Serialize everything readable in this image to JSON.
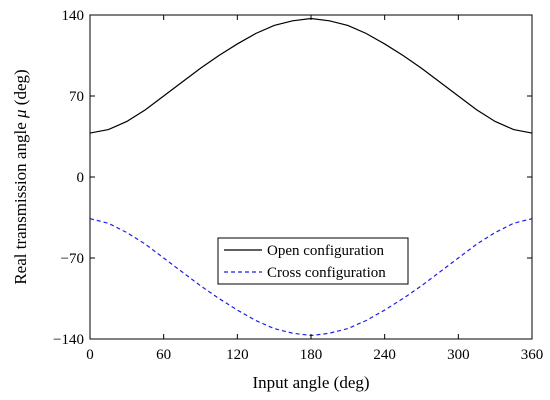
{
  "chart_data": {
    "type": "line",
    "xlabel": "Input angle (deg)",
    "ylabel_text": "Real transmission angle ",
    "ylabel_symbol": "μ",
    "ylabel_unit": " (deg)",
    "xlim": [
      0,
      360
    ],
    "ylim": [
      -140,
      140
    ],
    "xticks": [
      "0",
      "60",
      "120",
      "180",
      "240",
      "300",
      "360"
    ],
    "yticks": [
      "-140",
      "-70",
      "0",
      "70",
      "140"
    ],
    "grid": false,
    "legend_position": "lower-center",
    "series": [
      {
        "name": "Open configuration",
        "color": "#000000",
        "style": "solid",
        "x": [
          0,
          15,
          30,
          45,
          60,
          75,
          90,
          105,
          120,
          135,
          150,
          165,
          180,
          195,
          210,
          225,
          240,
          255,
          270,
          285,
          300,
          315,
          330,
          345,
          360
        ],
        "y": [
          38,
          41,
          48,
          58,
          70,
          82,
          94,
          105,
          115,
          124,
          131,
          135,
          137,
          135,
          131,
          124,
          115,
          105,
          94,
          82,
          70,
          58,
          48,
          41,
          38
        ]
      },
      {
        "name": "Cross configuration",
        "color": "#1f1fe6",
        "style": "dashed",
        "x": [
          0,
          15,
          30,
          45,
          60,
          75,
          90,
          105,
          120,
          135,
          150,
          165,
          180,
          195,
          210,
          225,
          240,
          255,
          270,
          285,
          300,
          315,
          330,
          345,
          360
        ],
        "y": [
          -36,
          -40,
          -48,
          -58,
          -70,
          -82,
          -94,
          -105,
          -115,
          -124,
          -131,
          -135,
          -137,
          -135,
          -131,
          -124,
          -115,
          -105,
          -94,
          -82,
          -70,
          -58,
          -48,
          -40,
          -36
        ]
      }
    ]
  }
}
